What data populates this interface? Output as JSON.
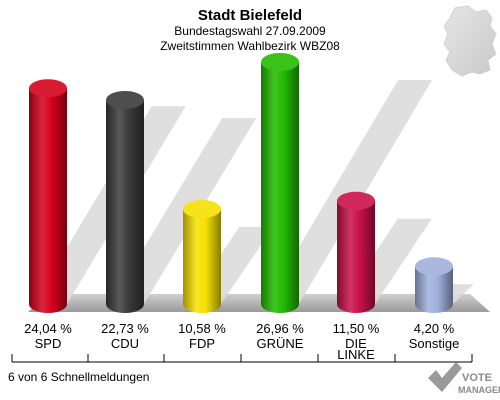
{
  "header": {
    "title": "Stadt Bielefeld",
    "subtitle1": "Bundestagswahl 27.09.2009",
    "subtitle2": "Zweitstimmen Wahlbezirk WBZ08"
  },
  "footer": {
    "status": "6 von 6 Schnellmeldungen"
  },
  "logo": {
    "line1": "VOTE",
    "line2": "MANAGER"
  },
  "chart_data": {
    "type": "bar",
    "categories": [
      "SPD",
      "CDU",
      "FDP",
      "GRÜNE",
      "DIE LINKE",
      "Sonstige"
    ],
    "values": [
      24.04,
      22.73,
      10.58,
      26.96,
      11.5,
      4.2
    ],
    "value_labels": [
      "24,04 %",
      "22,73 %",
      "10,58 %",
      "26,96 %",
      "11,50 %",
      "4,20 %"
    ],
    "colors": [
      "#d6001c",
      "#3a3a3a",
      "#f5e000",
      "#22bb00",
      "#c8104a",
      "#a0b0dd"
    ],
    "title": "Stadt Bielefeld",
    "xlabel": "",
    "ylabel": "",
    "ylim": [
      0,
      30
    ],
    "grid": false,
    "legend": "none"
  }
}
